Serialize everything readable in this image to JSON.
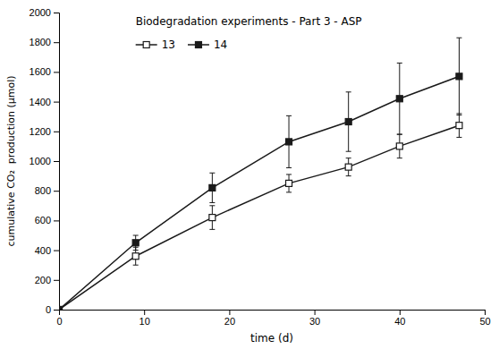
{
  "chart_data": {
    "type": "line",
    "title": "Biodegradation experiments - Part 3 - ASP",
    "xlabel": "time (d)",
    "ylabel": "cumulative CO₂  production (µmol)",
    "x": [
      0,
      9,
      18,
      27,
      34,
      40,
      47
    ],
    "xlim": [
      0,
      50
    ],
    "ylim": [
      0,
      2000
    ],
    "xticks": [
      0,
      10,
      20,
      30,
      40,
      50
    ],
    "yticks": [
      0,
      200,
      400,
      600,
      800,
      1000,
      1200,
      1400,
      1600,
      1800,
      2000
    ],
    "grid": false,
    "legend": "upper left",
    "series": [
      {
        "name": "13",
        "color": "#1a1a1a",
        "marker": "square-open",
        "values": [
          0,
          360,
          620,
          850,
          960,
          1100,
          1240
        ],
        "yerr": [
          0,
          60,
          80,
          60,
          60,
          80,
          80
        ]
      },
      {
        "name": "14",
        "color": "#1a1a1a",
        "marker": "square",
        "values": [
          0,
          450,
          820,
          1130,
          1265,
          1420,
          1570
        ],
        "yerr": [
          0,
          50,
          100,
          175,
          200,
          240,
          260
        ]
      }
    ]
  }
}
